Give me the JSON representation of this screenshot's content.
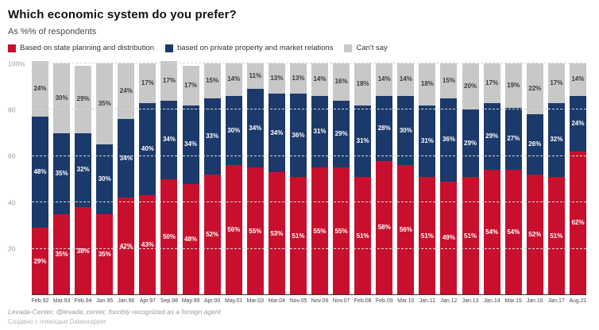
{
  "header": {
    "title": "Which economic system do you prefer?",
    "subtitle": "As %% of respondents"
  },
  "legend": [
    {
      "label": "Based on state planning and distribution",
      "color": "#c8102e"
    },
    {
      "label": "based on private property and market relations",
      "color": "#1b3a6b"
    },
    {
      "label": "Can't say",
      "color": "#c8c8c8"
    }
  ],
  "footer": {
    "source": "Levada-Center, @levada_center, forcibly recognized as a foreign agent",
    "credit": "Создано с помощью Datawrapper"
  },
  "chart_data": {
    "type": "bar",
    "stacked": true,
    "title": "Which economic system do you prefer?",
    "xlabel": "",
    "ylabel": "",
    "ylim": [
      0,
      100
    ],
    "grid": "dashed-horizontal",
    "legend_position": "top-left",
    "yticks": [
      {
        "pos": 100,
        "label": "100%"
      },
      {
        "pos": 80,
        "label": "80"
      },
      {
        "pos": 60,
        "label": "60"
      },
      {
        "pos": 40,
        "label": "40"
      },
      {
        "pos": 20,
        "label": "20"
      }
    ],
    "categories": [
      "Feb.92",
      "Mar.93",
      "Feb.94",
      "Jan.95",
      "Jan.96",
      "Apr.97",
      "Sep.98",
      "May.99",
      "Apr.00",
      "May.01",
      "Mar.03",
      "Mar.04",
      "Nov.05",
      "Nov.06",
      "Nov.07",
      "Feb.08",
      "Feb.09",
      "Mar.10",
      "Jan.11",
      "Jan.12",
      "Jan.13",
      "Jan.14",
      "Mar.15",
      "Jan.16",
      "Jan.17",
      "Aug.21"
    ],
    "series": [
      {
        "name": "Based on state planning and distribution",
        "color": "#c8102e",
        "text_color": "#ffffff",
        "values": [
          29,
          35,
          38,
          35,
          42,
          43,
          50,
          48,
          52,
          56,
          55,
          53,
          51,
          55,
          55,
          51,
          58,
          56,
          51,
          49,
          51,
          54,
          54,
          52,
          51,
          62
        ]
      },
      {
        "name": "based on private property and market relations",
        "color": "#1b3a6b",
        "text_color": "#ffffff",
        "values": [
          48,
          35,
          32,
          30,
          34,
          40,
          34,
          34,
          33,
          30,
          34,
          34,
          36,
          31,
          29,
          31,
          28,
          30,
          31,
          36,
          29,
          29,
          27,
          26,
          32,
          24
        ]
      },
      {
        "name": "Can't say",
        "color": "#c8c8c8",
        "text_color": "#3a3a3a",
        "values": [
          24,
          30,
          29,
          35,
          24,
          17,
          17,
          17,
          15,
          14,
          11,
          13,
          13,
          14,
          16,
          18,
          14,
          14,
          18,
          15,
          20,
          17,
          19,
          22,
          17,
          14
        ]
      }
    ]
  }
}
